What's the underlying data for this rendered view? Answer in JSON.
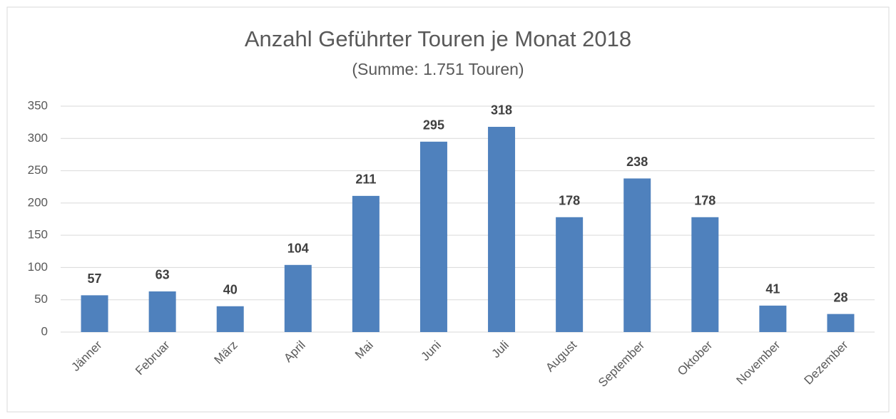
{
  "chart_data": {
    "type": "bar",
    "title": "Anzahl Geführter Touren je Monat 2018",
    "subtitle": "(Summe: 1.751 Touren)",
    "categories": [
      "Jänner",
      "Februar",
      "März",
      "April",
      "Mai",
      "Juni",
      "Juli",
      "August",
      "September",
      "Oktober",
      "November",
      "Dezember"
    ],
    "values": [
      57,
      63,
      40,
      104,
      211,
      295,
      318,
      178,
      238,
      178,
      41,
      28
    ],
    "color": "#4f81bd",
    "ylim": [
      0,
      350
    ],
    "yticks": [
      0,
      50,
      100,
      150,
      200,
      250,
      300,
      350
    ],
    "grid": true
  }
}
